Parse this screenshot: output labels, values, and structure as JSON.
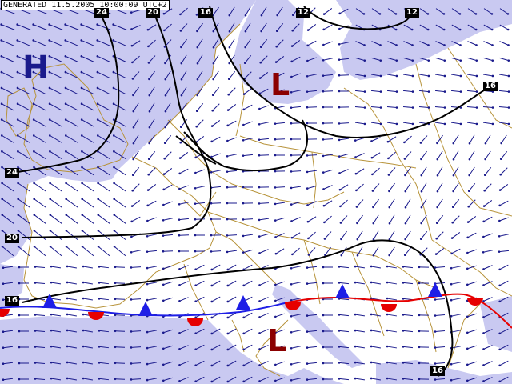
{
  "banner": {
    "text": "GENERATED 11.5.2005 10:00:09 UTC+2"
  },
  "colors": {
    "sea": "#c9c9f1",
    "land": "#ffffff",
    "border": "#b7933a",
    "isobar": "#000000",
    "wind": "#1a1a8c",
    "cold_front": "#1e1ee6",
    "warm_front": "#e60000",
    "high": "#1a1a8c",
    "low": "#8b0000"
  },
  "pressure_centers": [
    {
      "type": "high",
      "label": "H"
    },
    {
      "type": "low",
      "label": "L"
    },
    {
      "type": "low",
      "label": "L"
    }
  ],
  "isobar_labels": [
    "24",
    "20",
    "16",
    "12",
    "12",
    "16",
    "24",
    "20",
    "16",
    "16"
  ],
  "fronts": [
    {
      "type": "stationary",
      "symbols": [
        "triangle",
        "semicircle"
      ]
    }
  ]
}
